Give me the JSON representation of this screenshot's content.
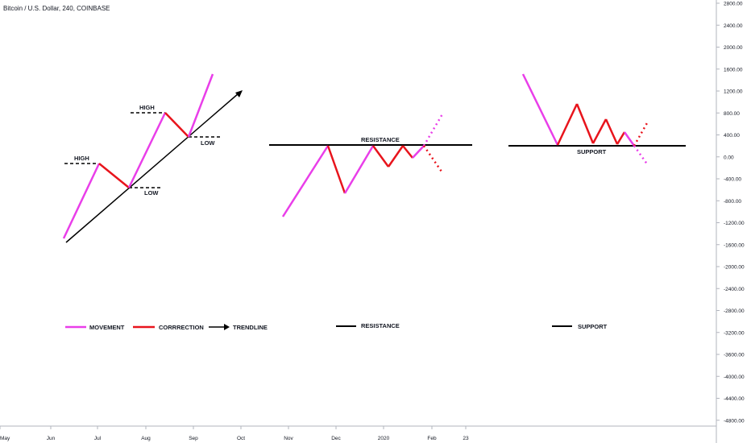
{
  "header": {
    "title": "Bitcoin / U.S. Dollar, 240, COINBASE"
  },
  "colors": {
    "movement": "#e93ee9",
    "correction": "#e8141c",
    "line": "#000000"
  },
  "chart_data": {
    "type": "line",
    "title": "Bitcoin / U.S. Dollar, 240, COINBASE",
    "ylim": [
      -4900,
      2900
    ],
    "y_ticks": [
      2800,
      2400,
      2000,
      1600,
      1200,
      800,
      400,
      0,
      -400,
      -800,
      -1200,
      -1600,
      -2000,
      -2400,
      -2800,
      -3200,
      -3600,
      -4000,
      -4400,
      -4800
    ],
    "y_tick_labels": [
      "2800.00",
      "2400.00",
      "2000.00",
      "1600.00",
      "1200.00",
      "800.00",
      "400.00",
      "0.00",
      "-400.00",
      "-800.00",
      "-1200.00",
      "-1600.00",
      "-2000.00",
      "-2400.00",
      "-2800.00",
      "-3200.00",
      "-3600.00",
      "-4000.00",
      "-4400.00",
      "-4800.00"
    ],
    "x_tick_labels": [
      "May",
      "Jun",
      "Jul",
      "Aug",
      "Sep",
      "Oct",
      "Nov",
      "Dec",
      "2020",
      "Feb",
      "23"
    ],
    "labels": [
      "HIGH",
      "LOW",
      "HIGH",
      "LOW",
      "RESISTANCE",
      "SUPPORT"
    ],
    "legend": [
      {
        "label": "MOVEMENT",
        "style": "movement"
      },
      {
        "label": "CORRRECTION",
        "style": "correction"
      },
      {
        "label": "TRENDLINE",
        "style": "arrow"
      },
      {
        "label": "RESISTANCE",
        "style": "line"
      },
      {
        "label": "SUPPORT",
        "style": "line"
      }
    ],
    "panels": [
      {
        "name": "trend",
        "segments": [
          {
            "type": "movement",
            "points": [
              [
                0.0,
                -1500
              ],
              [
                0.27,
                -120
              ]
            ]
          },
          {
            "type": "correction",
            "points": [
              [
                0.27,
                -120
              ],
              [
                0.55,
                -580
              ]
            ]
          },
          {
            "type": "movement",
            "points": [
              [
                0.55,
                -580
              ],
              [
                0.86,
                800
              ]
            ]
          },
          {
            "type": "correction",
            "points": [
              [
                0.86,
                800
              ],
              [
                1.0,
                360
              ]
            ]
          },
          {
            "type": "movement",
            "points": [
              [
                1.0,
                360
              ],
              [
                1.15,
                1500
              ]
            ]
          }
        ]
      },
      {
        "name": "resistance",
        "level": 200,
        "segments": [
          {
            "type": "movement",
            "points": [
              [
                0.0,
                -1100
              ],
              [
                0.28,
                200
              ]
            ]
          },
          {
            "type": "correction",
            "points": [
              [
                0.28,
                200
              ],
              [
                0.38,
                -680
              ]
            ]
          },
          {
            "type": "movement",
            "points": [
              [
                0.38,
                -680
              ],
              [
                0.56,
                200
              ]
            ]
          },
          {
            "type": "correction",
            "points": [
              [
                0.56,
                200
              ],
              [
                0.66,
                -200
              ]
            ]
          },
          {
            "type": "correction",
            "points": [
              [
                0.66,
                -200
              ],
              [
                0.75,
                200
              ]
            ]
          },
          {
            "type": "correction",
            "points": [
              [
                0.75,
                200
              ],
              [
                0.82,
                -20
              ]
            ]
          },
          {
            "type": "movement",
            "points": [
              [
                0.82,
                -20
              ],
              [
                0.89,
                200
              ]
            ]
          }
        ],
        "projections": [
          {
            "type": "movement",
            "points": [
              [
                0.89,
                200
              ],
              [
                1.0,
                800
              ]
            ]
          },
          {
            "type": "correction",
            "points": [
              [
                0.89,
                200
              ],
              [
                1.0,
                -250
              ]
            ]
          }
        ]
      },
      {
        "name": "support",
        "level": 200,
        "segments": [
          {
            "type": "movement",
            "points": [
              [
                0.0,
                1500
              ],
              [
                0.3,
                200
              ]
            ]
          },
          {
            "type": "correction",
            "points": [
              [
                0.3,
                200
              ],
              [
                0.47,
                960
              ]
            ]
          },
          {
            "type": "correction",
            "points": [
              [
                0.47,
                960
              ],
              [
                0.6,
                240
              ]
            ]
          },
          {
            "type": "correction",
            "points": [
              [
                0.6,
                240
              ],
              [
                0.7,
                700
              ]
            ]
          },
          {
            "type": "correction",
            "points": [
              [
                0.7,
                700
              ],
              [
                0.79,
                220
              ]
            ]
          },
          {
            "type": "correction",
            "points": [
              [
                0.79,
                220
              ],
              [
                0.85,
                450
              ]
            ]
          },
          {
            "type": "movement",
            "points": [
              [
                0.85,
                450
              ],
              [
                0.92,
                200
              ]
            ]
          }
        ],
        "projections": [
          {
            "type": "correction",
            "points": [
              [
                0.92,
                200
              ],
              [
                1.0,
                620
              ]
            ]
          },
          {
            "type": "movement",
            "points": [
              [
                0.92,
                200
              ],
              [
                1.0,
                -150
              ]
            ]
          }
        ]
      }
    ]
  }
}
